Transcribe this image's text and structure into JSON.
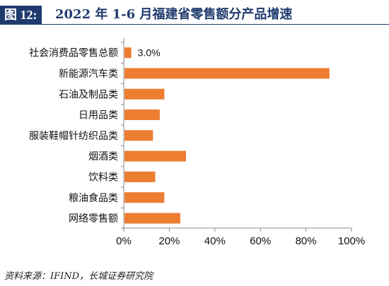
{
  "header": {
    "figure_label": "图 12:",
    "title": "2022 年 1-6 月福建省零售额分产品增速"
  },
  "chart_data": {
    "type": "bar",
    "orientation": "horizontal",
    "categories": [
      "社会消费品零售总额",
      "新能源汽车类",
      "石油及制品类",
      "日用品类",
      "服装鞋帽针纺织品类",
      "烟酒类",
      "饮料类",
      "粮油食品类",
      "网络零售额"
    ],
    "values": [
      3.0,
      90.0,
      17.5,
      15.5,
      12.5,
      27.0,
      13.5,
      17.5,
      24.5
    ],
    "data_labels": [
      "3.0%",
      "",
      "",
      "",
      "",
      "",
      "",
      "",
      ""
    ],
    "xticks": [
      "0%",
      "20%",
      "40%",
      "60%",
      "80%",
      "100%"
    ],
    "xlim": [
      0,
      100
    ],
    "bar_color": "#ed7d31",
    "grid": false,
    "legend": "none"
  },
  "source": "资料来源：IFIND，长城证券研究院"
}
